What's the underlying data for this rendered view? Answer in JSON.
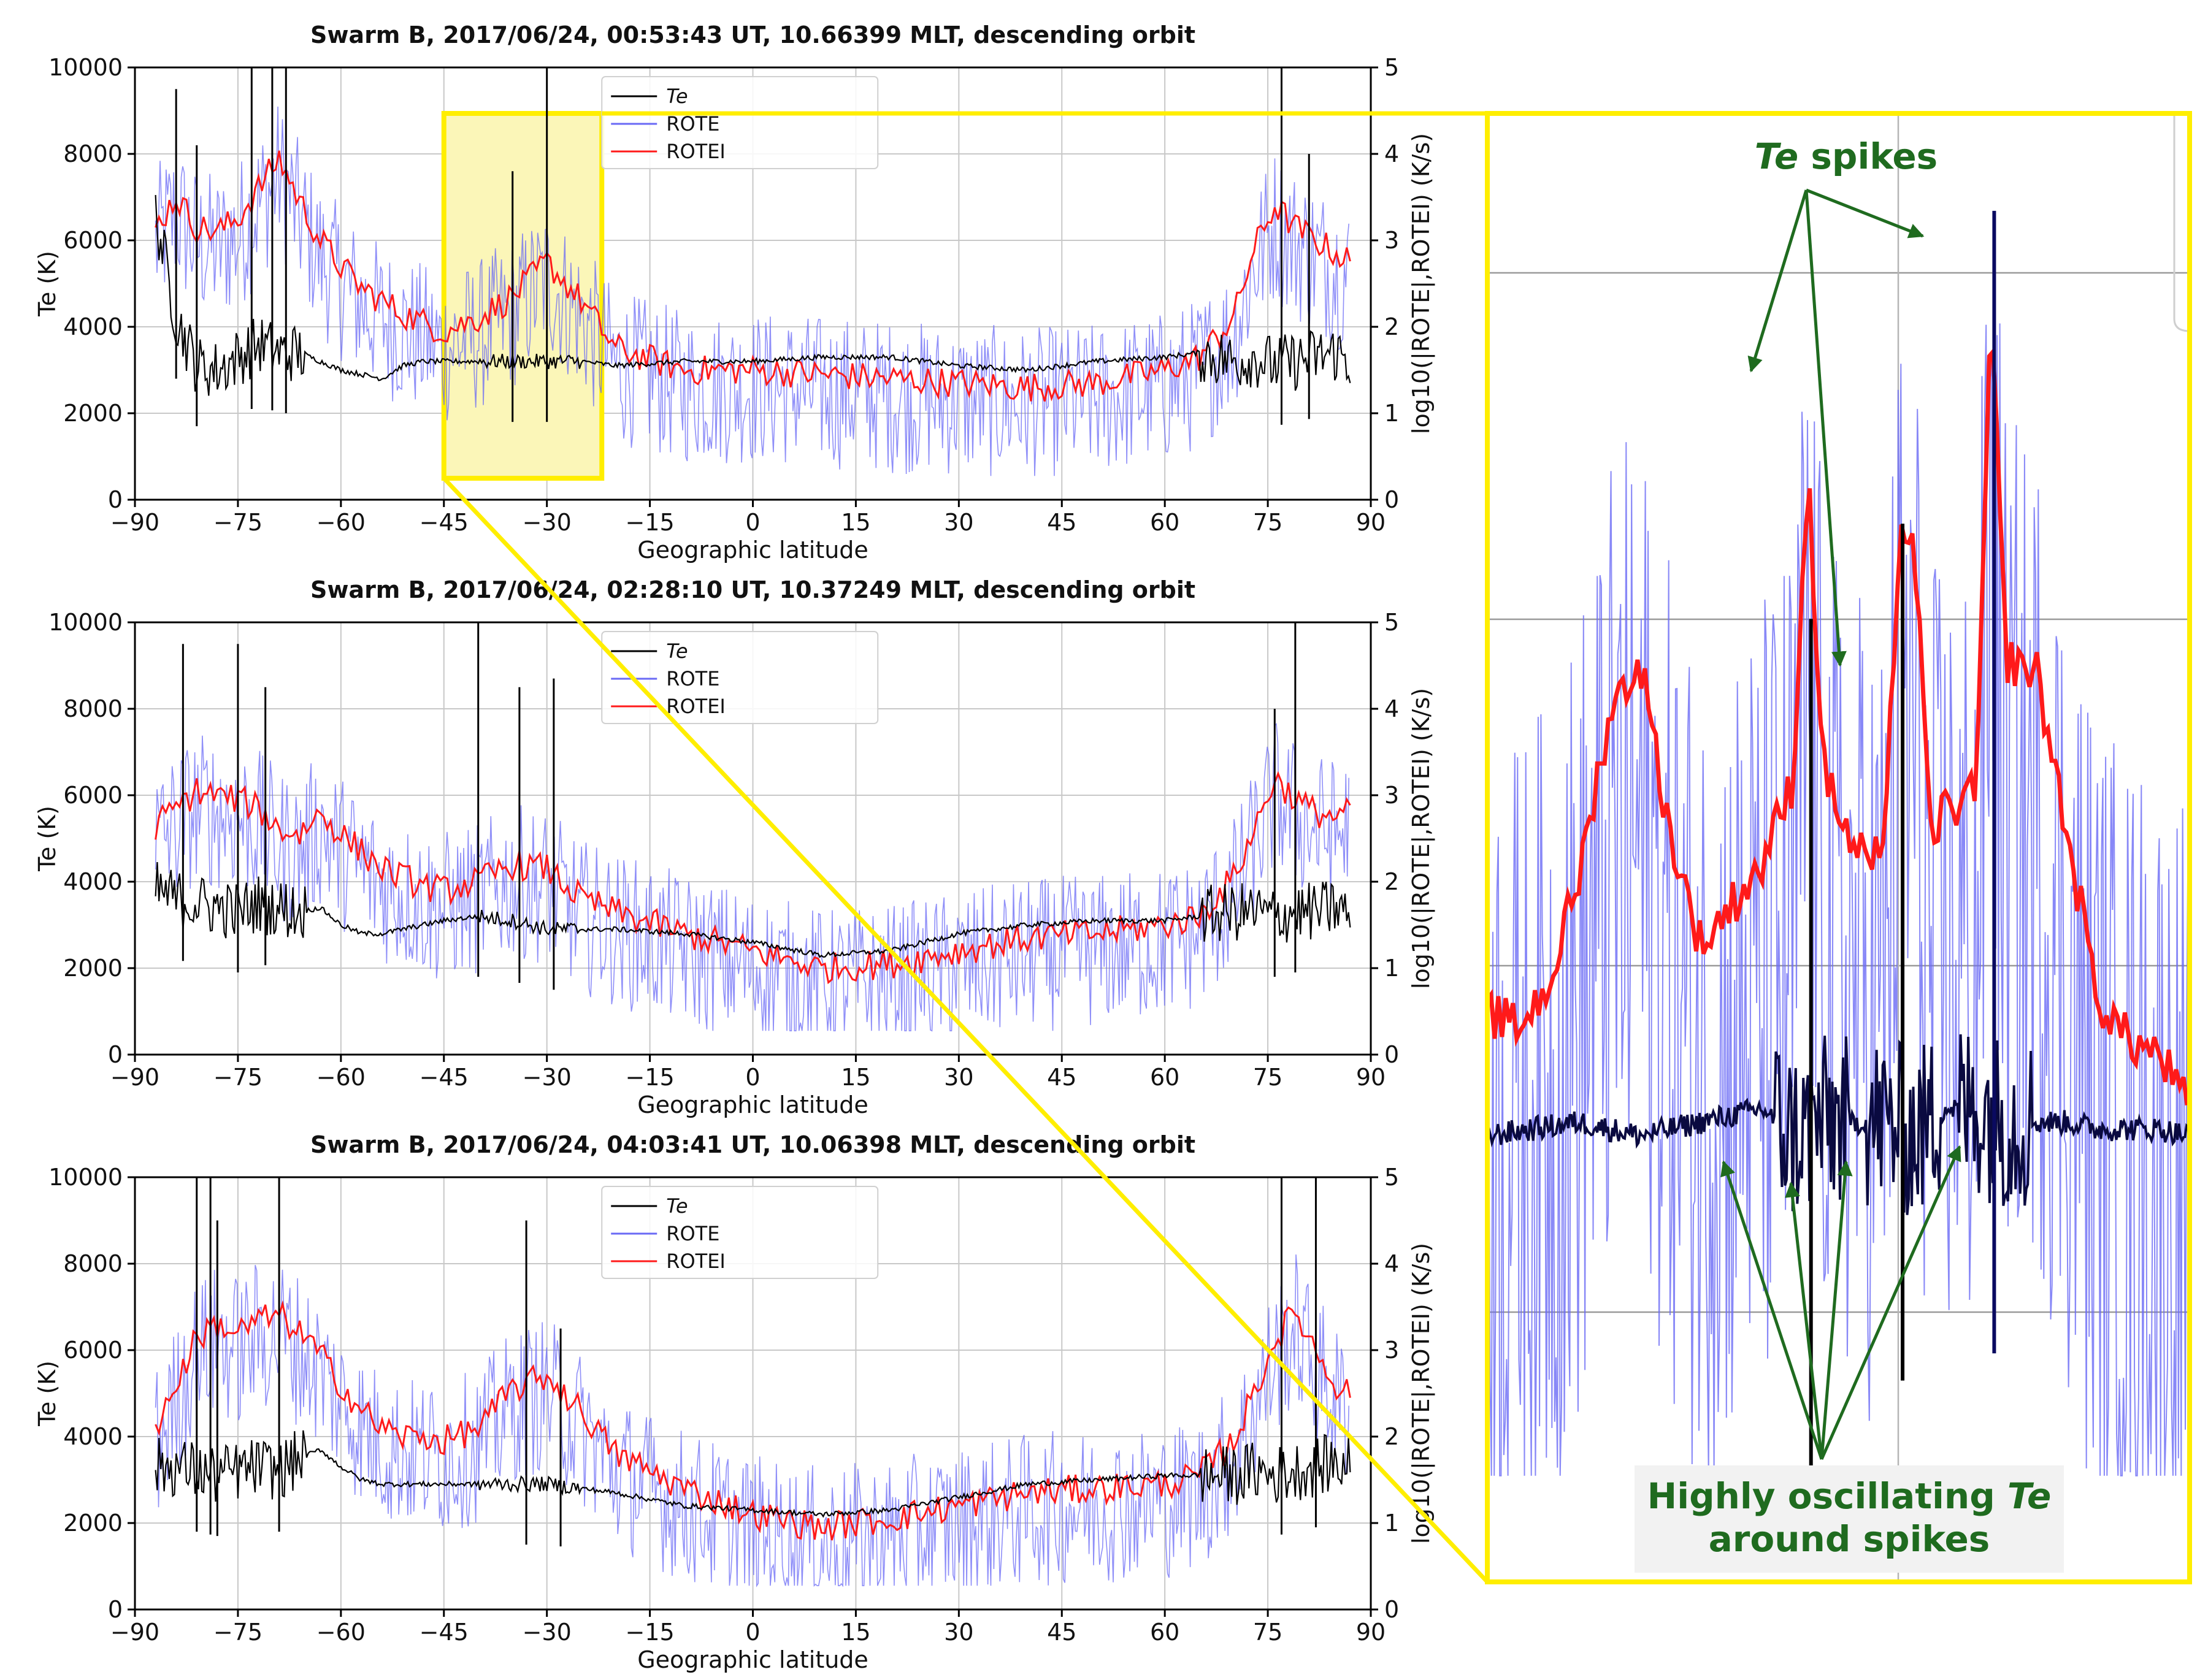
{
  "figure": {
    "colors": {
      "te": "#000000",
      "rote": "#6a6af5",
      "rotei": "#ff1a1a",
      "zoom_box": "#ffee00",
      "zoom_fill": "#fbf6b8",
      "annotation": "#1f6b1f",
      "grid": "#c8c8c8"
    }
  },
  "zoom": {
    "highlight_lat_range": [
      -45,
      -22
    ],
    "te_spikes_label_prefix": "Te",
    "te_spikes_label_suffix": " spikes",
    "oscillation_label_line1_prefix": "Highly oscillating ",
    "oscillation_label_line1_italic": "Te",
    "oscillation_label_line2": "around spikes"
  },
  "chart_data": [
    {
      "type": "line",
      "title": "Swarm B, 2017/06/24, 00:53:43 UT, 10.66399 MLT, descending orbit",
      "xlabel": "Geographic latitude",
      "ylabel": "Te (K)",
      "ylabel2": "log10(|ROTE|,ROTEI) (K/s)",
      "xlim": [
        -90,
        90
      ],
      "ylim": [
        0,
        10000
      ],
      "ylim2": [
        0,
        5
      ],
      "xticks": [
        "−90",
        "−75",
        "−60",
        "−45",
        "−30",
        "−15",
        "0",
        "15",
        "30",
        "45",
        "60",
        "75",
        "90"
      ],
      "yticks": [
        "0",
        "2000",
        "4000",
        "6000",
        "8000",
        "10000"
      ],
      "yticks2": [
        "0",
        "1",
        "2",
        "3",
        "4",
        "5"
      ],
      "legend": [
        "Te",
        "ROTE",
        "ROTEI"
      ],
      "series": [
        {
          "name": "Te",
          "x": [
            -87,
            -84,
            -81,
            -78,
            -75,
            -72,
            -69,
            -66,
            -63,
            -60,
            -57,
            -54,
            -51,
            -48,
            -45,
            -40,
            -35,
            -30,
            -25,
            -20,
            -10,
            0,
            10,
            20,
            30,
            40,
            50,
            60,
            65,
            70,
            73,
            76,
            79,
            82,
            85,
            87
          ],
          "values": [
            6600,
            4200,
            3100,
            3000,
            3300,
            3600,
            3400,
            3400,
            3200,
            3000,
            2900,
            2800,
            3100,
            3200,
            3200,
            3200,
            3200,
            3200,
            3200,
            3100,
            3200,
            3200,
            3300,
            3300,
            3100,
            3000,
            3200,
            3300,
            3400,
            3200,
            3300,
            3100,
            3200,
            3300,
            3400,
            3200
          ]
        },
        {
          "name": "ROTEI",
          "x": [
            -87,
            -84,
            -81,
            -78,
            -75,
            -72,
            -69,
            -66,
            -63,
            -60,
            -57,
            -54,
            -51,
            -48,
            -45,
            -40,
            -35,
            -30,
            -25,
            -20,
            -10,
            0,
            10,
            20,
            30,
            40,
            50,
            60,
            65,
            70,
            73,
            76,
            79,
            82,
            85,
            87
          ],
          "values": [
            6300,
            7000,
            6300,
            6200,
            6500,
            7200,
            7900,
            6900,
            6000,
            5400,
            4900,
            4600,
            4300,
            4100,
            3900,
            4200,
            4700,
            5500,
            4600,
            3500,
            3000,
            3000,
            2900,
            2800,
            2700,
            2600,
            2700,
            3000,
            3300,
            4200,
            5800,
            6800,
            6300,
            6000,
            5700,
            5500
          ]
        }
      ]
    },
    {
      "type": "line",
      "title": "Swarm B, 2017/06/24, 02:28:10 UT, 10.37249 MLT, descending orbit",
      "xlabel": "Geographic latitude",
      "ylabel": "Te (K)",
      "ylabel2": "log10(|ROTE|,ROTEI) (K/s)",
      "xlim": [
        -90,
        90
      ],
      "ylim": [
        0,
        10000
      ],
      "ylim2": [
        0,
        5
      ],
      "xticks": [
        "−90",
        "−75",
        "−60",
        "−45",
        "−30",
        "−15",
        "0",
        "15",
        "30",
        "45",
        "60",
        "75",
        "90"
      ],
      "yticks": [
        "0",
        "2000",
        "4000",
        "6000",
        "8000",
        "10000"
      ],
      "yticks2": [
        "0",
        "1",
        "2",
        "3",
        "4",
        "5"
      ],
      "legend": [
        "Te",
        "ROTE",
        "ROTEI"
      ],
      "series": [
        {
          "name": "Te",
          "x": [
            -87,
            -84,
            -81,
            -78,
            -75,
            -72,
            -69,
            -66,
            -63,
            -60,
            -57,
            -54,
            -51,
            -48,
            -45,
            -40,
            -35,
            -30,
            -25,
            -20,
            -10,
            0,
            10,
            20,
            30,
            40,
            50,
            60,
            65,
            70,
            73,
            76,
            79,
            82,
            85,
            87
          ],
          "values": [
            3800,
            3600,
            3500,
            3400,
            3300,
            3500,
            3400,
            3300,
            3400,
            3000,
            2800,
            2800,
            2900,
            3000,
            3100,
            3200,
            3100,
            2900,
            2900,
            2900,
            2800,
            2600,
            2300,
            2400,
            2800,
            3000,
            3100,
            3100,
            3200,
            3300,
            3300,
            3200,
            3300,
            3300,
            3400,
            3200
          ]
        },
        {
          "name": "ROTEI",
          "x": [
            -87,
            -84,
            -81,
            -78,
            -75,
            -72,
            -69,
            -66,
            -63,
            -60,
            -57,
            -54,
            -51,
            -48,
            -45,
            -40,
            -35,
            -30,
            -25,
            -20,
            -10,
            0,
            10,
            20,
            30,
            40,
            50,
            60,
            65,
            70,
            73,
            76,
            79,
            82,
            85,
            87
          ],
          "values": [
            5300,
            5700,
            6100,
            6000,
            5900,
            5700,
            5200,
            5100,
            5600,
            5100,
            4700,
            4300,
            4100,
            3900,
            3800,
            4000,
            4400,
            4300,
            3600,
            3300,
            2800,
            2400,
            2000,
            2100,
            2400,
            2700,
            2800,
            3000,
            3200,
            4100,
            5200,
            6400,
            5900,
            5600,
            5500,
            5600
          ]
        }
      ]
    },
    {
      "type": "line",
      "title": "Swarm B, 2017/06/24, 04:03:41 UT, 10.06398 MLT, descending orbit",
      "xlabel": "Geographic latitude",
      "ylabel": "Te (K)",
      "ylabel2": "log10(|ROTE|,ROTEI) (K/s)",
      "xlim": [
        -90,
        90
      ],
      "ylim": [
        0,
        10000
      ],
      "ylim2": [
        0,
        5
      ],
      "xticks": [
        "−90",
        "−75",
        "−60",
        "−45",
        "−30",
        "−15",
        "0",
        "15",
        "30",
        "45",
        "60",
        "75",
        "90"
      ],
      "yticks": [
        "0",
        "2000",
        "4000",
        "6000",
        "8000",
        "10000"
      ],
      "yticks2": [
        "0",
        "1",
        "2",
        "3",
        "4",
        "5"
      ],
      "legend": [
        "Te",
        "ROTE",
        "ROTEI"
      ],
      "series": [
        {
          "name": "Te",
          "x": [
            -87,
            -84,
            -81,
            -78,
            -75,
            -72,
            -69,
            -66,
            -63,
            -60,
            -57,
            -54,
            -51,
            -48,
            -45,
            -40,
            -35,
            -30,
            -25,
            -20,
            -10,
            0,
            10,
            20,
            30,
            40,
            50,
            60,
            65,
            70,
            73,
            76,
            79,
            82,
            85,
            87
          ],
          "values": [
            3300,
            3300,
            3200,
            3100,
            3200,
            3300,
            3200,
            3500,
            3700,
            3300,
            3000,
            2900,
            2900,
            2900,
            2900,
            2900,
            2900,
            2900,
            2800,
            2700,
            2400,
            2300,
            2200,
            2300,
            2600,
            2900,
            3000,
            3100,
            3100,
            3100,
            3200,
            3100,
            3200,
            3300,
            3400,
            3300
          ]
        },
        {
          "name": "ROTEI",
          "x": [
            -87,
            -84,
            -81,
            -78,
            -75,
            -72,
            -69,
            -66,
            -63,
            -60,
            -57,
            -54,
            -51,
            -48,
            -45,
            -40,
            -35,
            -30,
            -25,
            -20,
            -10,
            0,
            10,
            20,
            30,
            40,
            50,
            60,
            65,
            70,
            73,
            76,
            79,
            82,
            85,
            87
          ],
          "values": [
            4200,
            5200,
            6300,
            6600,
            6400,
            6700,
            6800,
            6400,
            5900,
            5200,
            4600,
            4200,
            4000,
            4000,
            3900,
            4200,
            5100,
            5400,
            4600,
            3600,
            2800,
            2200,
            1900,
            2100,
            2400,
            2700,
            2800,
            2900,
            3100,
            3900,
            5000,
            6200,
            6900,
            6000,
            5200,
            5000
          ]
        }
      ]
    },
    {
      "type": "line",
      "title": "",
      "xlabel": "",
      "ylabel": "",
      "xlim": [
        -45,
        -22
      ],
      "ylim": [
        0,
        10000
      ],
      "series": [
        {
          "name": "Te",
          "x": [
            -45,
            -42,
            -40,
            -38,
            -36,
            -35,
            -34,
            -33,
            -32,
            -31,
            -30,
            -29,
            -28,
            -27,
            -26,
            -25,
            -24,
            -23,
            -22
          ],
          "values": [
            3100,
            3200,
            3100,
            3200,
            3300,
            3100,
            3200,
            3200,
            3200,
            3100,
            3300,
            3300,
            3200,
            3200,
            3200,
            3150,
            3150,
            3150,
            3100
          ]
        },
        {
          "name": "ROTEI",
          "x": [
            -45,
            -44,
            -43,
            -42,
            -41,
            -40,
            -39,
            -38,
            -37,
            -36,
            -35,
            -34.5,
            -34,
            -33,
            -32,
            -31.5,
            -31,
            -30.5,
            -30,
            -29,
            -28.5,
            -28,
            -27,
            -26,
            -25,
            -24,
            -23,
            -22
          ],
          "values": [
            4000,
            3900,
            4200,
            5000,
            6200,
            6600,
            5300,
            4500,
            4800,
            5100,
            5700,
            8000,
            5800,
            5200,
            5100,
            7600,
            7400,
            5300,
            5500,
            5600,
            9100,
            6600,
            6500,
            5300,
            4100,
            3800,
            3700,
            3300
          ]
        }
      ]
    }
  ]
}
